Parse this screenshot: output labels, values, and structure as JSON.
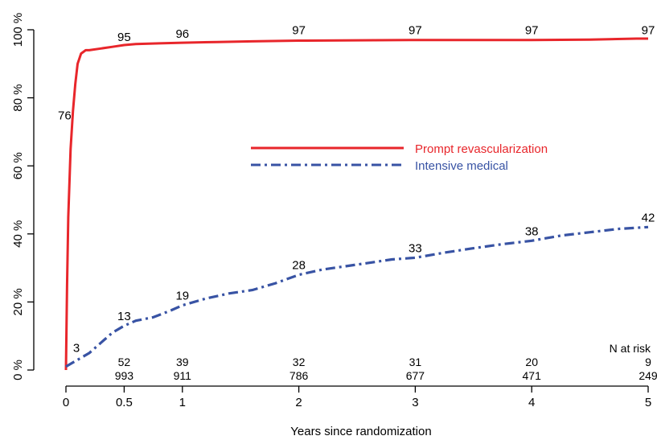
{
  "chart_data": {
    "type": "line",
    "xlabel": "Years since randomization",
    "ylabel": "",
    "xlim": [
      0,
      5
    ],
    "ylim": [
      0,
      100
    ],
    "x_ticks": [
      0,
      0.5,
      1,
      2,
      3,
      4,
      5
    ],
    "x_tick_labels": [
      "0",
      "0.5",
      "1",
      "2",
      "3",
      "4",
      "5"
    ],
    "y_ticks": [
      0,
      20,
      40,
      60,
      80,
      100
    ],
    "y_tick_labels": [
      "0 %",
      "20 %",
      "40 %",
      "60 %",
      "80 %",
      "100 %"
    ],
    "grid": false,
    "legend_position": "center",
    "series": [
      {
        "name": "Prompt revascularization",
        "color": "#e8262b",
        "line_style": "solid",
        "x": [
          0,
          0.01,
          0.02,
          0.04,
          0.06,
          0.08,
          0.1,
          0.13,
          0.17,
          0.2,
          0.3,
          0.4,
          0.5,
          0.6,
          0.8,
          1,
          1.3,
          1.6,
          2,
          2.5,
          3,
          3.5,
          4,
          4.5,
          4.9,
          5
        ],
        "values": [
          0,
          25,
          45,
          65,
          76,
          84,
          90,
          93,
          94,
          94,
          94.5,
          95,
          95.5,
          95.8,
          96,
          96.2,
          96.4,
          96.6,
          96.8,
          96.9,
          97,
          97,
          97,
          97.1,
          97.4,
          97.4
        ]
      },
      {
        "name": "Intensive medical",
        "color": "#3853a4",
        "line_style": "dashdot",
        "x": [
          0,
          0.05,
          0.1,
          0.2,
          0.3,
          0.4,
          0.5,
          0.6,
          0.75,
          0.9,
          1,
          1.2,
          1.4,
          1.6,
          1.8,
          2,
          2.2,
          2.4,
          2.6,
          2.8,
          3,
          3.25,
          3.5,
          3.75,
          4,
          4.25,
          4.5,
          4.75,
          5
        ],
        "values": [
          1,
          2,
          3,
          5,
          8,
          11,
          13,
          14.5,
          15.5,
          17.5,
          19,
          21,
          22.5,
          23.5,
          25.5,
          28,
          29.5,
          30.5,
          31.5,
          32.5,
          33,
          34.5,
          35.8,
          37,
          38,
          39.5,
          40.5,
          41.5,
          42
        ]
      }
    ],
    "point_labels": [
      {
        "series": 0,
        "x": 0.04,
        "y": 76,
        "text": "76"
      },
      {
        "series": 0,
        "x": 0.5,
        "y": 95,
        "text": "95"
      },
      {
        "series": 0,
        "x": 1,
        "y": 96,
        "text": "96"
      },
      {
        "series": 0,
        "x": 2,
        "y": 97,
        "text": "97"
      },
      {
        "series": 0,
        "x": 3,
        "y": 97,
        "text": "97"
      },
      {
        "series": 0,
        "x": 4,
        "y": 97,
        "text": "97"
      },
      {
        "series": 0,
        "x": 5,
        "y": 97,
        "text": "97"
      },
      {
        "series": 1,
        "x": 0.08,
        "y": 3,
        "text": "3"
      },
      {
        "series": 1,
        "x": 0.5,
        "y": 13,
        "text": "13"
      },
      {
        "series": 1,
        "x": 1,
        "y": 19,
        "text": "19"
      },
      {
        "series": 1,
        "x": 2,
        "y": 28,
        "text": "28"
      },
      {
        "series": 1,
        "x": 3,
        "y": 33,
        "text": "33"
      },
      {
        "series": 1,
        "x": 4,
        "y": 38,
        "text": "38"
      },
      {
        "series": 1,
        "x": 5,
        "y": 42,
        "text": "42"
      }
    ],
    "risk_table": {
      "header": "N at risk",
      "x": [
        0.5,
        1,
        2,
        3,
        4,
        5
      ],
      "rows": [
        [
          "52",
          "39",
          "32",
          "31",
          "20",
          "9"
        ],
        [
          "993",
          "911",
          "786",
          "677",
          "471",
          "249"
        ]
      ]
    }
  }
}
